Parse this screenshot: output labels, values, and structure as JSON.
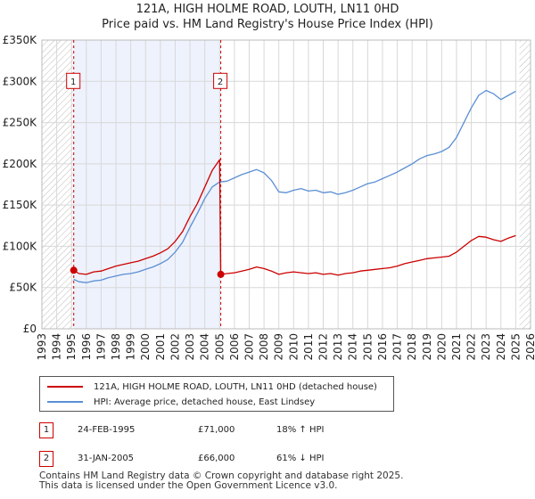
{
  "title": {
    "line1": "121A, HIGH HOLME ROAD, LOUTH, LN11 0HD",
    "line2": "Price paid vs. HM Land Registry's House Price Index (HPI)"
  },
  "chart_data": {
    "type": "line",
    "x_range": [
      1993,
      2026
    ],
    "ylim": [
      0,
      350000
    ],
    "y_ticks": [
      {
        "value": 0,
        "label": "£0"
      },
      {
        "value": 50000,
        "label": "£50K"
      },
      {
        "value": 100000,
        "label": "£100K"
      },
      {
        "value": 150000,
        "label": "£150K"
      },
      {
        "value": 200000,
        "label": "£200K"
      },
      {
        "value": 250000,
        "label": "£250K"
      },
      {
        "value": 300000,
        "label": "£300K"
      },
      {
        "value": 350000,
        "label": "£350K"
      }
    ],
    "x_ticks": [
      "1993",
      "1994",
      "1995",
      "1996",
      "1997",
      "1998",
      "1999",
      "2000",
      "2001",
      "2002",
      "2003",
      "2004",
      "2005",
      "2006",
      "2007",
      "2008",
      "2009",
      "2010",
      "2011",
      "2012",
      "2013",
      "2014",
      "2015",
      "2016",
      "2017",
      "2018",
      "2019",
      "2020",
      "2021",
      "2022",
      "2023",
      "2024",
      "2025",
      "2026"
    ],
    "grid": true,
    "shaded_region": [
      1995.15,
      2005.08
    ],
    "hatched_regions": [
      [
        1993,
        1995.15
      ],
      [
        2025.25,
        2026
      ]
    ],
    "series": [
      {
        "name": "121A, HIGH HOLME ROAD, LOUTH, LN11 0HD (detached house)",
        "color": "#cc0000",
        "points": [
          [
            1995.15,
            71000
          ],
          [
            1995.5,
            67000
          ],
          [
            1996,
            66000
          ],
          [
            1996.5,
            69000
          ],
          [
            1997,
            70000
          ],
          [
            1997.5,
            73000
          ],
          [
            1998,
            76000
          ],
          [
            1998.5,
            78000
          ],
          [
            1999,
            80000
          ],
          [
            1999.5,
            82000
          ],
          [
            2000,
            85000
          ],
          [
            2000.5,
            88000
          ],
          [
            2001,
            92000
          ],
          [
            2001.5,
            97000
          ],
          [
            2002,
            106000
          ],
          [
            2002.5,
            118000
          ],
          [
            2003,
            136000
          ],
          [
            2003.5,
            152000
          ],
          [
            2004,
            172000
          ],
          [
            2004.5,
            192000
          ],
          [
            2005.0,
            205000
          ],
          [
            2005.08,
            66000
          ],
          [
            2005.5,
            67000
          ],
          [
            2006,
            68000
          ],
          [
            2006.5,
            70000
          ],
          [
            2007,
            72000
          ],
          [
            2007.5,
            75000
          ],
          [
            2008,
            73000
          ],
          [
            2008.5,
            70000
          ],
          [
            2009,
            66000
          ],
          [
            2009.5,
            68000
          ],
          [
            2010,
            69000
          ],
          [
            2010.5,
            68000
          ],
          [
            2011,
            67000
          ],
          [
            2011.5,
            68000
          ],
          [
            2012,
            66000
          ],
          [
            2012.5,
            67000
          ],
          [
            2013,
            65000
          ],
          [
            2013.5,
            67000
          ],
          [
            2014,
            68000
          ],
          [
            2014.5,
            70000
          ],
          [
            2015,
            71000
          ],
          [
            2015.5,
            72000
          ],
          [
            2016,
            73000
          ],
          [
            2016.5,
            74000
          ],
          [
            2017,
            76000
          ],
          [
            2017.5,
            79000
          ],
          [
            2018,
            81000
          ],
          [
            2018.5,
            83000
          ],
          [
            2019,
            85000
          ],
          [
            2019.5,
            86000
          ],
          [
            2020,
            87000
          ],
          [
            2020.5,
            88000
          ],
          [
            2021,
            93000
          ],
          [
            2021.5,
            100000
          ],
          [
            2022,
            107000
          ],
          [
            2022.5,
            112000
          ],
          [
            2023,
            111000
          ],
          [
            2023.5,
            108000
          ],
          [
            2024,
            106000
          ],
          [
            2024.5,
            110000
          ],
          [
            2025,
            113000
          ]
        ]
      },
      {
        "name": "HPI: Average price, detached house, East Lindsey",
        "color": "#5b8fd4",
        "points": [
          [
            1995.15,
            60000
          ],
          [
            1995.5,
            57000
          ],
          [
            1996,
            56000
          ],
          [
            1996.5,
            58000
          ],
          [
            1997,
            59000
          ],
          [
            1997.5,
            62000
          ],
          [
            1998,
            64000
          ],
          [
            1998.5,
            66000
          ],
          [
            1999,
            67000
          ],
          [
            1999.5,
            69000
          ],
          [
            2000,
            72000
          ],
          [
            2000.5,
            75000
          ],
          [
            2001,
            79000
          ],
          [
            2001.5,
            84000
          ],
          [
            2002,
            93000
          ],
          [
            2002.5,
            105000
          ],
          [
            2003,
            123000
          ],
          [
            2003.5,
            140000
          ],
          [
            2004,
            158000
          ],
          [
            2004.5,
            172000
          ],
          [
            2005,
            178000
          ],
          [
            2005.5,
            179000
          ],
          [
            2006,
            183000
          ],
          [
            2006.5,
            187000
          ],
          [
            2007,
            190000
          ],
          [
            2007.5,
            193000
          ],
          [
            2008,
            189000
          ],
          [
            2008.5,
            180000
          ],
          [
            2009,
            166000
          ],
          [
            2009.5,
            165000
          ],
          [
            2010,
            168000
          ],
          [
            2010.5,
            170000
          ],
          [
            2011,
            167000
          ],
          [
            2011.5,
            168000
          ],
          [
            2012,
            165000
          ],
          [
            2012.5,
            166000
          ],
          [
            2013,
            163000
          ],
          [
            2013.5,
            165000
          ],
          [
            2014,
            168000
          ],
          [
            2014.5,
            172000
          ],
          [
            2015,
            176000
          ],
          [
            2015.5,
            178000
          ],
          [
            2016,
            182000
          ],
          [
            2016.5,
            186000
          ],
          [
            2017,
            190000
          ],
          [
            2017.5,
            195000
          ],
          [
            2018,
            200000
          ],
          [
            2018.5,
            206000
          ],
          [
            2019,
            210000
          ],
          [
            2019.5,
            212000
          ],
          [
            2020,
            215000
          ],
          [
            2020.5,
            220000
          ],
          [
            2021,
            232000
          ],
          [
            2021.5,
            250000
          ],
          [
            2022,
            268000
          ],
          [
            2022.5,
            283000
          ],
          [
            2023,
            289000
          ],
          [
            2023.5,
            285000
          ],
          [
            2024,
            278000
          ],
          [
            2024.5,
            283000
          ],
          [
            2025,
            288000
          ]
        ]
      }
    ],
    "markers": [
      {
        "label": "1",
        "x": 1995.15,
        "y": 71000,
        "box_value": 300000
      },
      {
        "label": "2",
        "x": 2005.08,
        "y": 66000,
        "box_value": 300000
      }
    ]
  },
  "legend": {
    "property": "121A, HIGH HOLME ROAD, LOUTH, LN11 0HD (detached house)",
    "hpi": "HPI: Average price, detached house, East Lindsey"
  },
  "transactions": [
    {
      "num": "1",
      "date": "24-FEB-1995",
      "price": "£71,000",
      "hpi": "18% ↑ HPI"
    },
    {
      "num": "2",
      "date": "31-JAN-2005",
      "price": "£66,000",
      "hpi": "61% ↓ HPI"
    }
  ],
  "footer": {
    "line1": "Contains HM Land Registry data © Crown copyright and database right 2025.",
    "line2": "This data is licensed under the Open Government Licence v3.0."
  },
  "colors": {
    "red": "#cc0000",
    "blue": "#5b8fd4",
    "shade": "#eef2fc",
    "grid": "#d8d8d8"
  }
}
